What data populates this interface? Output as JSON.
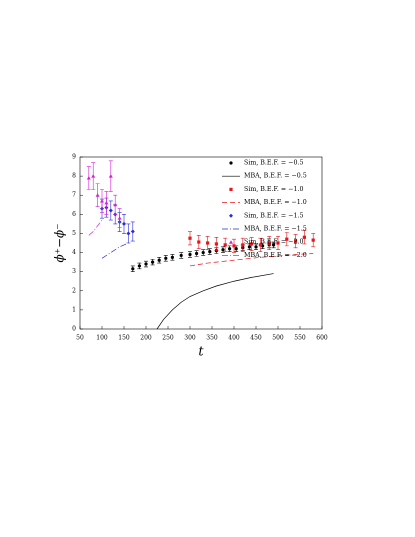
{
  "chart_data": {
    "type": "scatter",
    "xlabel": "t",
    "ylabel": "ϕ⁺−ϕ⁻",
    "xlim": [
      50,
      600
    ],
    "xticks": [
      50,
      100,
      150,
      200,
      250,
      300,
      350,
      400,
      450,
      500,
      550,
      600
    ],
    "ylim": [
      0,
      9
    ],
    "yticks": [
      0,
      1,
      2,
      3,
      4,
      5,
      6,
      7,
      8,
      9
    ],
    "legend": "upper right",
    "series": [
      {
        "name": "Sim, B.E.F. = −0.5",
        "style": "errorbar",
        "marker": "circle",
        "color": "#000000",
        "x": [
          170,
          185,
          200,
          215,
          230,
          245,
          260,
          280,
          300,
          315,
          330,
          345,
          360,
          375,
          390,
          405,
          420,
          435,
          450,
          465,
          480,
          490
        ],
        "values": [
          3.15,
          3.3,
          3.4,
          3.5,
          3.6,
          3.7,
          3.75,
          3.85,
          3.9,
          3.95,
          4.0,
          4.05,
          4.1,
          4.15,
          4.2,
          4.2,
          4.25,
          4.3,
          4.3,
          4.35,
          4.4,
          4.4
        ],
        "errors": [
          0.15,
          0.15,
          0.15,
          0.15,
          0.15,
          0.15,
          0.15,
          0.15,
          0.15,
          0.15,
          0.15,
          0.15,
          0.15,
          0.15,
          0.15,
          0.15,
          0.15,
          0.15,
          0.15,
          0.15,
          0.15,
          0.15
        ]
      },
      {
        "name": "MBA, B.E.F. = −0.5",
        "style": "line",
        "dash": "none",
        "color": "#000000",
        "x": [
          225,
          240,
          260,
          280,
          300,
          330,
          360,
          400,
          440,
          490
        ],
        "values": [
          0,
          0.5,
          1.0,
          1.4,
          1.7,
          2.0,
          2.25,
          2.5,
          2.7,
          2.9
        ]
      },
      {
        "name": "Sim, B.E.F. = −1.0",
        "style": "errorbar",
        "marker": "square",
        "color": "#e8161b",
        "x": [
          300,
          320,
          340,
          360,
          380,
          400,
          420,
          440,
          460,
          480,
          500,
          520,
          540,
          560,
          580
        ],
        "values": [
          4.75,
          4.55,
          4.5,
          4.45,
          4.4,
          4.35,
          4.4,
          4.45,
          4.4,
          4.5,
          4.5,
          4.7,
          4.6,
          4.8,
          4.65
        ],
        "errors": [
          0.35,
          0.35,
          0.35,
          0.35,
          0.35,
          0.35,
          0.35,
          0.35,
          0.35,
          0.35,
          0.35,
          0.35,
          0.35,
          0.35,
          0.35
        ]
      },
      {
        "name": "MBA, B.E.F. = −1.0",
        "style": "line",
        "dash": "5 3",
        "color": "#e8161b",
        "x": [
          300,
          340,
          380,
          420,
          460,
          500,
          540,
          580
        ],
        "values": [
          3.3,
          3.45,
          3.55,
          3.65,
          3.75,
          3.82,
          3.9,
          3.95
        ]
      },
      {
        "name": "Sim, B.E.F. = −1.5",
        "style": "errorbar",
        "marker": "diamond",
        "color": "#2b2bd9",
        "x": [
          100,
          110,
          120,
          130,
          140,
          150,
          160,
          170
        ],
        "values": [
          6.3,
          6.35,
          6.2,
          6.0,
          5.6,
          5.5,
          5.0,
          5.1
        ],
        "errors": [
          0.5,
          0.5,
          0.5,
          0.5,
          0.5,
          0.5,
          0.5,
          0.5
        ]
      },
      {
        "name": "MBA, B.E.F. = −1.5",
        "style": "line",
        "dash": "6 2 1 2",
        "color": "#2b2bd9",
        "x": [
          100,
          120,
          140,
          160
        ],
        "values": [
          3.7,
          4.0,
          4.3,
          4.5
        ]
      },
      {
        "name": "Sim, B.E.F. = −2.0",
        "style": "errorbar",
        "marker": "triangle",
        "color": "#d61fd6",
        "x": [
          70,
          80,
          90,
          100,
          110,
          120,
          130,
          140
        ],
        "values": [
          7.9,
          8.0,
          7.0,
          6.7,
          6.6,
          8.0,
          6.5,
          5.8
        ],
        "errors": [
          0.6,
          0.7,
          0.6,
          0.6,
          0.6,
          0.8,
          0.5,
          0.5
        ]
      },
      {
        "name": "MBA, B.E.F. = −2.0",
        "style": "line",
        "dash": "6 2 1 2",
        "color": "#d61fd6",
        "x": [
          70,
          80,
          90,
          100
        ],
        "values": [
          4.9,
          5.1,
          5.4,
          5.7
        ]
      }
    ]
  }
}
